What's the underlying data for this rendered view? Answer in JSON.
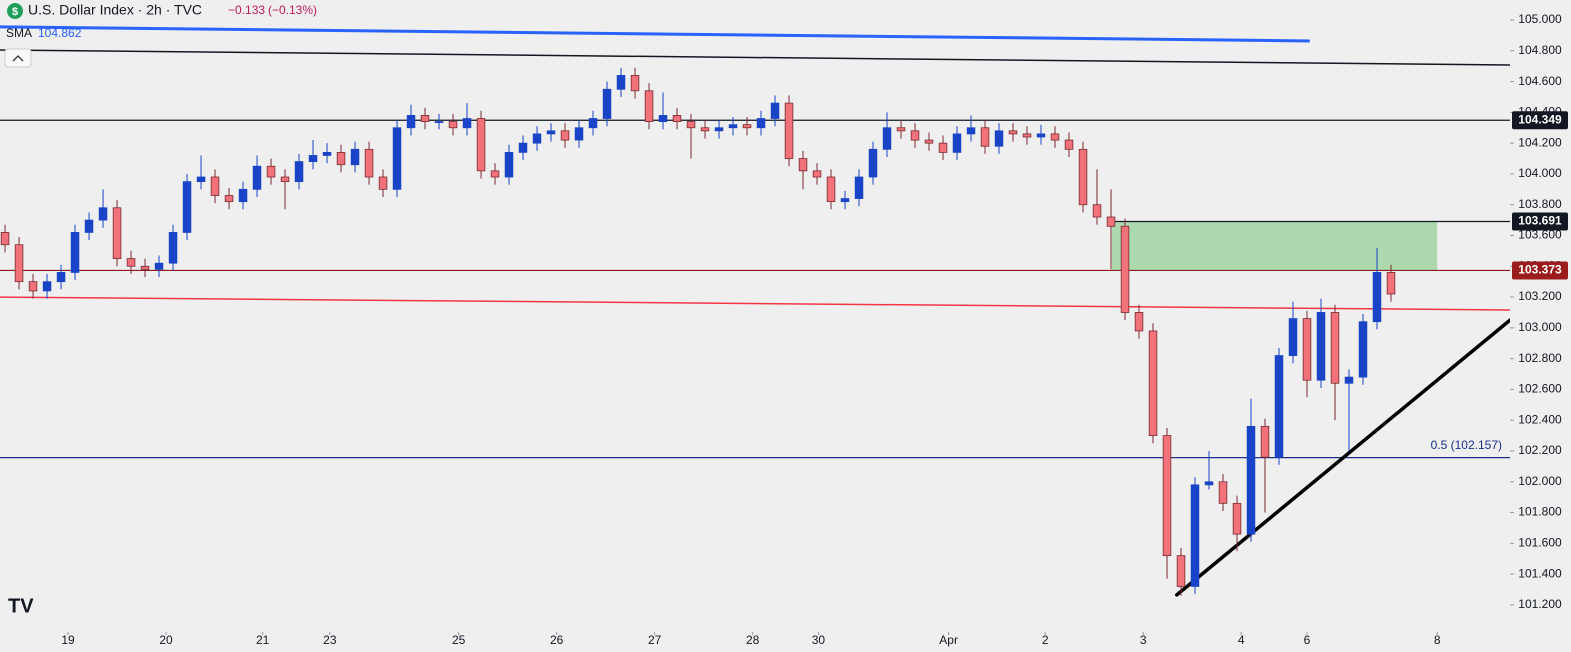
{
  "chart_data": {
    "type": "candlestick",
    "title": "U.S. Dollar Index · 2h · TVC",
    "change": "−0.133",
    "change_percent": "(−0.13%)",
    "indicator": {
      "name": "SMA",
      "value": 104.862,
      "color": "#2962ff",
      "from": [
        -0.36,
        104.955
      ],
      "to": [
        93.2,
        104.864
      ]
    },
    "up_color": "#1a44c8",
    "down_color": "#f2727c",
    "open": [
      103.62,
      103.54,
      103.3,
      103.24,
      103.3,
      103.36,
      103.62,
      103.7,
      103.78,
      103.45,
      103.4,
      103.38,
      103.42,
      103.62,
      103.95,
      103.98,
      103.86,
      103.82,
      103.9,
      104.05,
      103.98,
      103.95,
      104.08,
      104.12,
      104.14,
      104.06,
      104.16,
      103.98,
      103.9,
      104.3,
      104.38,
      104.34,
      104.34,
      104.3,
      104.36,
      104.02,
      103.98,
      104.14,
      104.2,
      104.26,
      104.28,
      104.22,
      104.3,
      104.36,
      104.55,
      104.64,
      104.54,
      104.34,
      104.38,
      104.34,
      104.3,
      104.28,
      104.3,
      104.32,
      104.3,
      104.36,
      104.46,
      104.1,
      104.02,
      103.98,
      103.82,
      103.84,
      103.98,
      104.16,
      104.3,
      104.28,
      104.22,
      104.2,
      104.14,
      104.26,
      104.3,
      104.18,
      104.28,
      104.26,
      104.24,
      104.26,
      104.22,
      104.16,
      103.8,
      103.72,
      103.66,
      103.1,
      102.98,
      102.3,
      101.52,
      101.32,
      101.98,
      102.0,
      101.86,
      101.66,
      102.36,
      102.16,
      102.82,
      103.06,
      102.66,
      103.1,
      102.64,
      102.68,
      103.04,
      103.36
    ],
    "high": [
      103.67,
      103.59,
      103.35,
      103.35,
      103.41,
      103.67,
      103.75,
      103.9,
      103.83,
      103.5,
      103.45,
      103.47,
      103.67,
      104.0,
      104.12,
      104.03,
      103.91,
      103.95,
      104.12,
      104.1,
      104.03,
      104.13,
      104.22,
      104.2,
      104.19,
      104.21,
      104.21,
      104.03,
      104.35,
      104.45,
      104.43,
      104.39,
      104.39,
      104.46,
      104.41,
      104.07,
      104.19,
      104.25,
      104.31,
      104.33,
      104.33,
      104.35,
      104.41,
      104.6,
      104.69,
      104.69,
      104.59,
      104.53,
      104.43,
      104.39,
      104.35,
      104.35,
      104.37,
      104.37,
      104.41,
      104.51,
      104.51,
      104.15,
      104.07,
      104.03,
      103.89,
      104.03,
      104.21,
      104.4,
      104.35,
      104.33,
      104.27,
      104.25,
      104.31,
      104.38,
      104.35,
      104.33,
      104.33,
      104.31,
      104.32,
      104.31,
      104.27,
      104.21,
      104.03,
      103.9,
      103.71,
      103.15,
      103.03,
      102.35,
      101.57,
      102.03,
      102.2,
      102.05,
      101.91,
      102.54,
      102.41,
      102.87,
      103.17,
      103.11,
      103.19,
      103.15,
      102.73,
      103.09,
      103.52,
      103.41
    ],
    "low": [
      103.49,
      103.25,
      103.19,
      103.19,
      103.25,
      103.31,
      103.57,
      103.65,
      103.4,
      103.35,
      103.33,
      103.33,
      103.37,
      103.57,
      103.9,
      103.81,
      103.77,
      103.77,
      103.85,
      103.93,
      103.77,
      103.9,
      104.03,
      104.07,
      104.01,
      104.01,
      103.93,
      103.85,
      103.85,
      104.25,
      104.29,
      104.29,
      104.25,
      104.25,
      103.97,
      103.93,
      103.93,
      104.09,
      104.15,
      104.21,
      104.17,
      104.17,
      104.25,
      104.31,
      104.5,
      104.49,
      104.29,
      104.29,
      104.29,
      104.1,
      104.23,
      104.23,
      104.25,
      104.25,
      104.25,
      104.31,
      104.05,
      103.9,
      103.93,
      103.77,
      103.77,
      103.79,
      103.93,
      104.11,
      104.23,
      104.17,
      104.15,
      104.09,
      104.09,
      104.21,
      104.13,
      104.13,
      104.21,
      104.19,
      104.19,
      104.17,
      104.11,
      103.75,
      103.67,
      103.38,
      103.05,
      102.93,
      102.25,
      101.37,
      101.26,
      101.27,
      101.95,
      101.81,
      101.55,
      101.61,
      101.8,
      102.11,
      102.77,
      102.55,
      102.61,
      102.4,
      102.2,
      102.63,
      102.99,
      103.17
    ],
    "close": [
      103.54,
      103.3,
      103.24,
      103.3,
      103.36,
      103.62,
      103.7,
      103.78,
      103.45,
      103.4,
      103.38,
      103.42,
      103.62,
      103.95,
      103.98,
      103.86,
      103.82,
      103.9,
      104.05,
      103.98,
      103.95,
      104.08,
      104.12,
      104.14,
      104.06,
      104.16,
      103.98,
      103.9,
      104.3,
      104.38,
      104.34,
      104.34,
      104.3,
      104.36,
      104.02,
      103.98,
      104.14,
      104.2,
      104.26,
      104.28,
      104.22,
      104.3,
      104.36,
      104.55,
      104.64,
      104.54,
      104.34,
      104.38,
      104.34,
      104.3,
      104.28,
      104.3,
      104.32,
      104.3,
      104.36,
      104.46,
      104.1,
      104.02,
      103.98,
      103.82,
      103.84,
      103.98,
      104.16,
      104.3,
      104.28,
      104.22,
      104.2,
      104.14,
      104.26,
      104.3,
      104.18,
      104.28,
      104.26,
      104.24,
      104.26,
      104.22,
      104.16,
      103.8,
      103.72,
      103.66,
      103.1,
      102.98,
      102.3,
      101.52,
      101.32,
      101.98,
      102.0,
      101.86,
      101.66,
      102.36,
      102.16,
      102.82,
      103.06,
      102.66,
      103.1,
      102.64,
      102.68,
      103.04,
      103.36,
      103.22
    ],
    "xlim": [
      -0.36,
      107.5
    ],
    "xticks": [
      {
        "value": 4.5,
        "label": "19"
      },
      {
        "value": 11.5,
        "label": "20"
      },
      {
        "value": 18.4,
        "label": "21"
      },
      {
        "value": 23.2,
        "label": "23"
      },
      {
        "value": 32.4,
        "label": "25"
      },
      {
        "value": 39.4,
        "label": "26"
      },
      {
        "value": 46.4,
        "label": "27"
      },
      {
        "value": 53.4,
        "label": "28"
      },
      {
        "value": 58.1,
        "label": "30"
      },
      {
        "value": 67.4,
        "label": "Apr"
      },
      {
        "value": 74.3,
        "label": "2"
      },
      {
        "value": 81.3,
        "label": "3"
      },
      {
        "value": 88.3,
        "label": "4"
      },
      {
        "value": 93,
        "label": "6"
      },
      {
        "value": 102.3,
        "label": "8"
      }
    ],
    "ylim": [
      101.05,
      105.13
    ],
    "yticks": [
      {
        "value": 101.2,
        "label": "101.200"
      },
      {
        "value": 101.4,
        "label": "101.400"
      },
      {
        "value": 101.6,
        "label": "101.600"
      },
      {
        "value": 101.8,
        "label": "101.800"
      },
      {
        "value": 102,
        "label": "102.000"
      },
      {
        "value": 102.2,
        "label": "102.200"
      },
      {
        "value": 102.4,
        "label": "102.400"
      },
      {
        "value": 102.6,
        "label": "102.600"
      },
      {
        "value": 102.8,
        "label": "102.800"
      },
      {
        "value": 103,
        "label": "103.000"
      },
      {
        "value": 103.2,
        "label": "103.200"
      },
      {
        "value": 103.4,
        "label": "103.400"
      },
      {
        "value": 103.6,
        "label": "103.600"
      },
      {
        "value": 103.8,
        "label": "103.800"
      },
      {
        "value": 104,
        "label": "104.000"
      },
      {
        "value": 104.2,
        "label": "104.200"
      },
      {
        "value": 104.4,
        "label": "104.400"
      },
      {
        "value": 104.6,
        "label": "104.600"
      },
      {
        "value": 104.8,
        "label": "104.800"
      },
      {
        "value": 105,
        "label": "105.000"
      }
    ],
    "levels": [
      {
        "value": 104.349,
        "label": "104.349",
        "color": "#131722",
        "start": -0.36,
        "tag_color": "#131722"
      },
      {
        "value": 103.691,
        "label": "103.691",
        "color": "#131722",
        "start": 79.07,
        "tag_color": "#131722"
      },
      {
        "value": 103.373,
        "label": "103.373",
        "color": "#8b1a1a",
        "start": -0.36,
        "tag_color": "#9b1c1c"
      }
    ],
    "fib_level": {
      "value": 102.157,
      "label": "0.5 (102.157)",
      "color": "#1a2f8a"
    },
    "zone": {
      "from": 79.07,
      "to": 102.3,
      "low": 103.373,
      "high": 103.691,
      "color": "#a5d6a7"
    },
    "trendlines": [
      {
        "from": [
          -0.36,
          104.805
        ],
        "to": [
          107.5,
          104.708
        ],
        "color": "#131722",
        "width": 1.5
      },
      {
        "from": [
          -0.36,
          103.2
        ],
        "to": [
          107.5,
          103.116
        ],
        "color": "#f23645",
        "width": 1.5
      },
      {
        "from": [
          83.7,
          101.265
        ],
        "to": [
          107.5,
          103.05
        ],
        "color": "#000000",
        "width": 3.5
      }
    ]
  }
}
